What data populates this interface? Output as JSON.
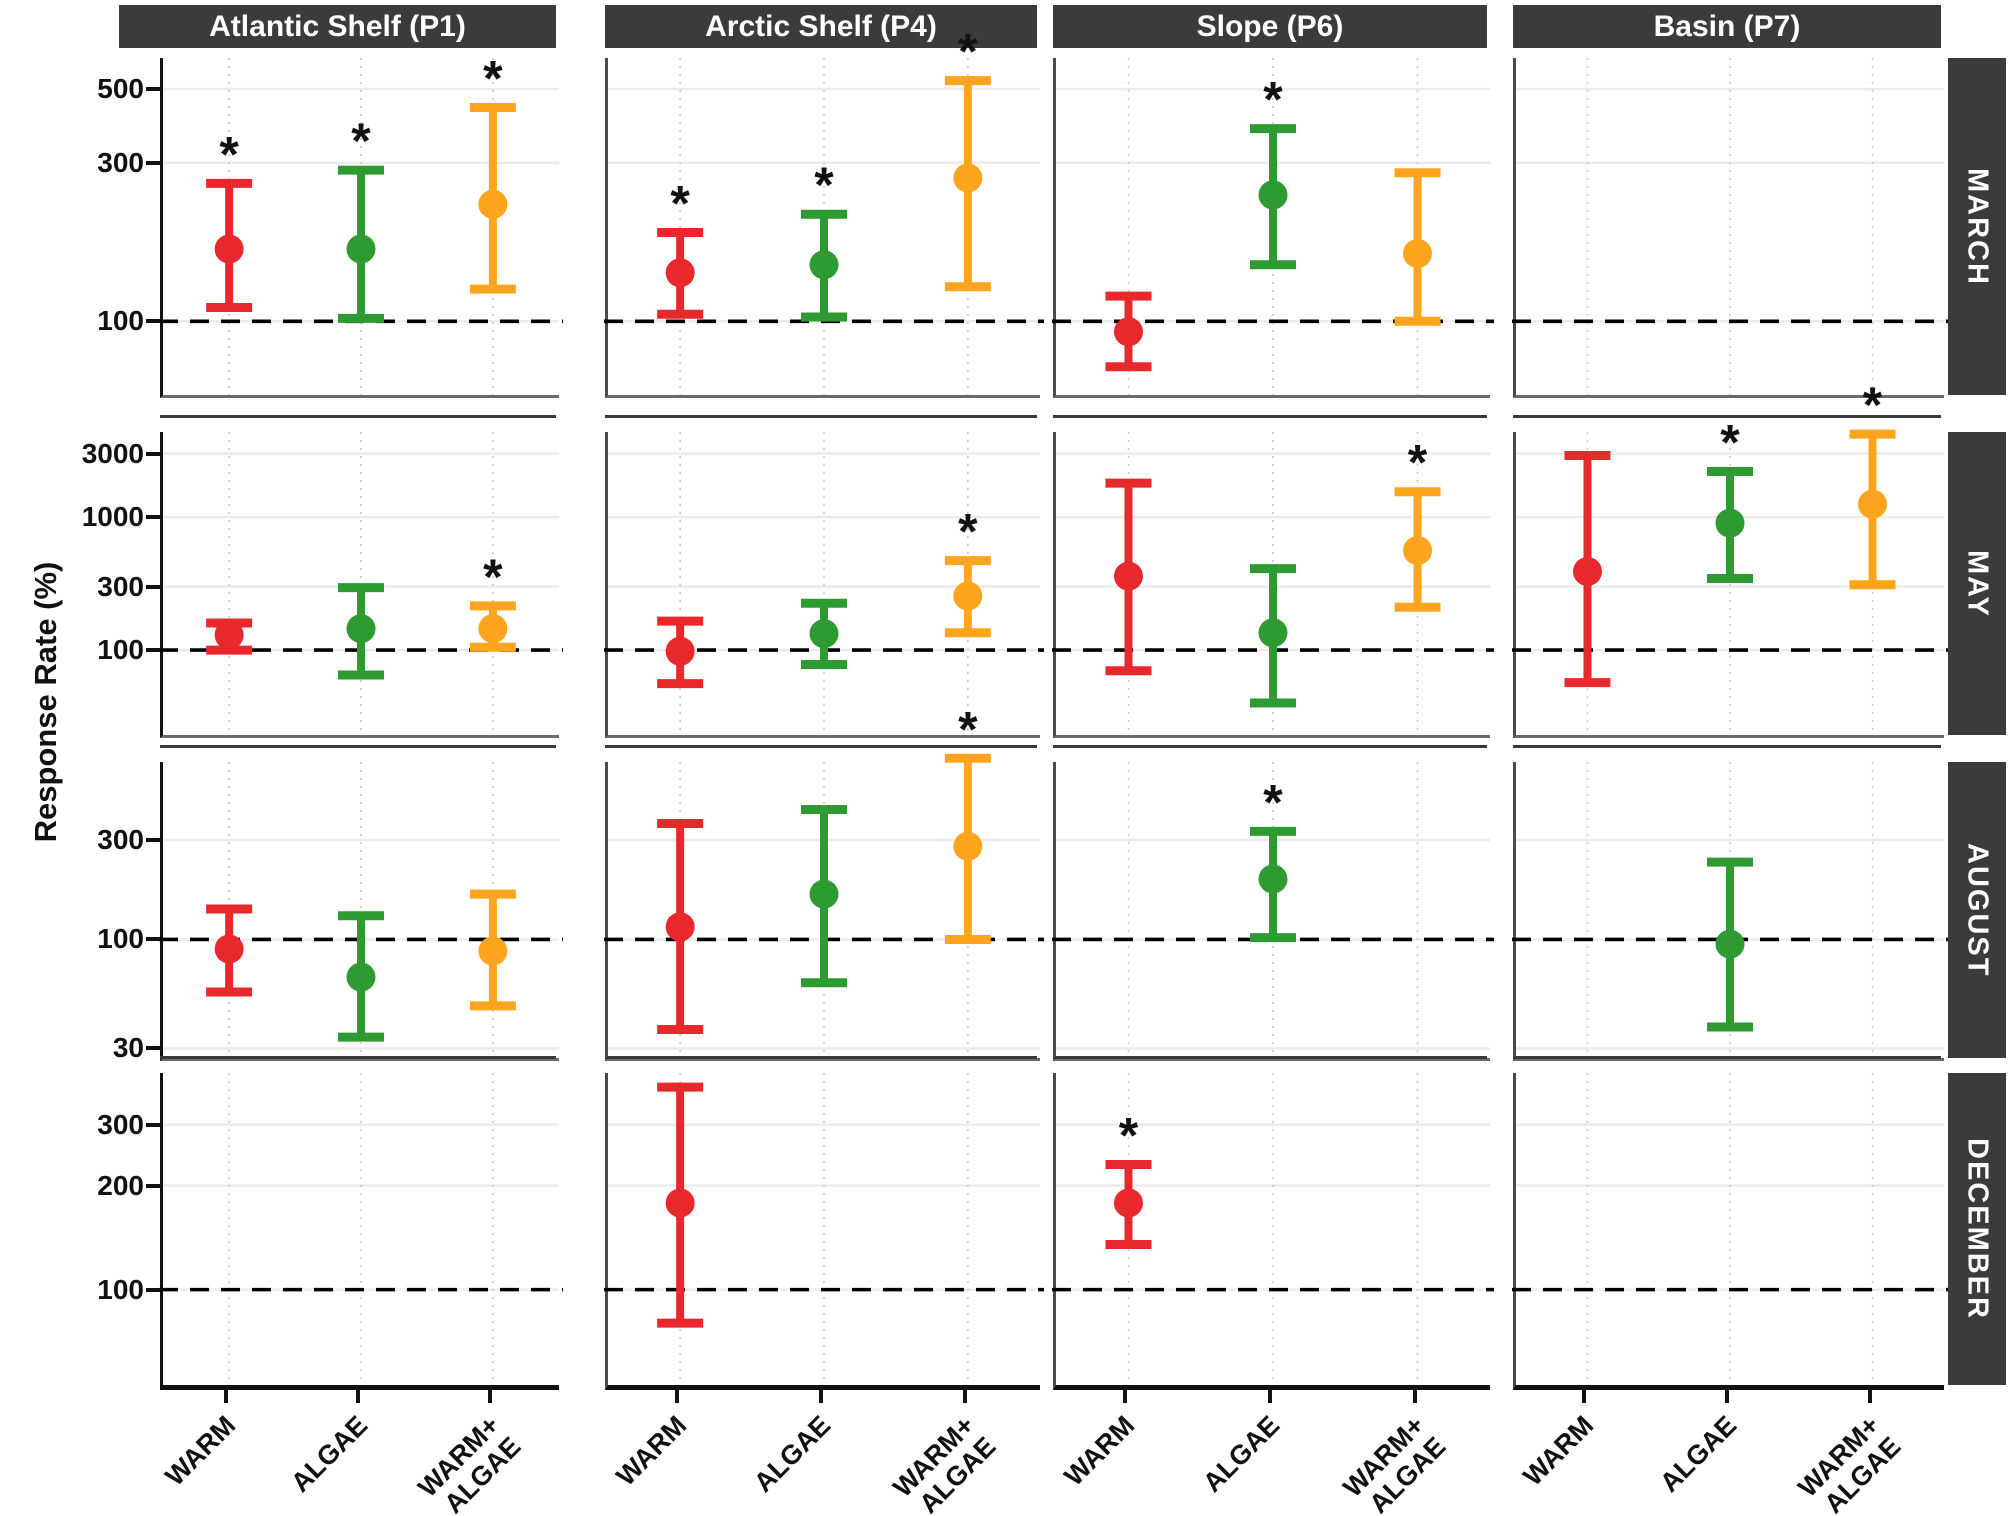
{
  "figure": {
    "y_axis_title": "Response Rate (%)",
    "significance_marker": "*"
  },
  "chart_data": {
    "type": "scatter",
    "subtype": "point-range with error bars, faceted grid, log10 y-scale",
    "title": "",
    "xlabel": "",
    "ylabel": "Response Rate (%)",
    "reference_line_y": 100,
    "grid": "major horizontal solid, vertical dotted at categories",
    "x_categories": [
      "WARM",
      "ALGAE",
      "WARM+ALGAE"
    ],
    "x_category_display": [
      [
        "WARM"
      ],
      [
        "ALGAE"
      ],
      [
        "WARM+",
        "ALGAE"
      ]
    ],
    "facet_columns": [
      {
        "id": "P1",
        "label": "Atlantic Shelf (P1)"
      },
      {
        "id": "P4",
        "label": "Arctic Shelf (P4)"
      },
      {
        "id": "P6",
        "label": "Slope (P6)"
      },
      {
        "id": "P7",
        "label": "Basin (P7)"
      }
    ],
    "facet_rows": [
      {
        "id": "MARCH",
        "label": "MARCH",
        "yticks": [
          500,
          300,
          100
        ],
        "ylim": [
          60,
          620
        ]
      },
      {
        "id": "MAY",
        "label": "MAY",
        "yticks": [
          3000,
          1000,
          300,
          100
        ],
        "ylim": [
          23,
          4360
        ]
      },
      {
        "id": "AUGUST",
        "label": "AUGUST",
        "yticks": [
          300,
          100,
          30
        ],
        "ylim": [
          27,
          710
        ]
      },
      {
        "id": "DECEMBER",
        "label": "DECEMBER",
        "yticks": [
          300,
          200,
          100
        ],
        "ylim": [
          53,
          423
        ]
      }
    ],
    "series": [
      {
        "name": "WARM",
        "color": "#E8282C"
      },
      {
        "name": "ALGAE",
        "color": "#2E9B32"
      },
      {
        "name": "WARM+ALGAE",
        "color": "#FFA41E"
      }
    ],
    "points": [
      {
        "row": "MARCH",
        "col": "P1",
        "treatment": "WARM",
        "value": 165,
        "lo": 110,
        "hi": 260,
        "significant": true
      },
      {
        "row": "MARCH",
        "col": "P1",
        "treatment": "ALGAE",
        "value": 165,
        "lo": 102,
        "hi": 285,
        "significant": true
      },
      {
        "row": "MARCH",
        "col": "P1",
        "treatment": "WARM+ALGAE",
        "value": 225,
        "lo": 125,
        "hi": 440,
        "significant": true
      },
      {
        "row": "MARCH",
        "col": "P4",
        "treatment": "WARM",
        "value": 140,
        "lo": 105,
        "hi": 185,
        "significant": true
      },
      {
        "row": "MARCH",
        "col": "P4",
        "treatment": "ALGAE",
        "value": 148,
        "lo": 103,
        "hi": 210,
        "significant": true
      },
      {
        "row": "MARCH",
        "col": "P4",
        "treatment": "WARM+ALGAE",
        "value": 270,
        "lo": 127,
        "hi": 530,
        "significant": true
      },
      {
        "row": "MARCH",
        "col": "P6",
        "treatment": "WARM",
        "value": 93,
        "lo": 73,
        "hi": 119,
        "significant": false
      },
      {
        "row": "MARCH",
        "col": "P6",
        "treatment": "ALGAE",
        "value": 240,
        "lo": 148,
        "hi": 380,
        "significant": true
      },
      {
        "row": "MARCH",
        "col": "P6",
        "treatment": "WARM+ALGAE",
        "value": 160,
        "lo": 100,
        "hi": 280,
        "significant": false
      },
      {
        "row": "MAY",
        "col": "P1",
        "treatment": "WARM",
        "value": 130,
        "lo": 100,
        "hi": 160,
        "significant": false
      },
      {
        "row": "MAY",
        "col": "P1",
        "treatment": "ALGAE",
        "value": 145,
        "lo": 65,
        "hi": 295,
        "significant": false
      },
      {
        "row": "MAY",
        "col": "P1",
        "treatment": "WARM+ALGAE",
        "value": 145,
        "lo": 105,
        "hi": 215,
        "significant": true
      },
      {
        "row": "MAY",
        "col": "P4",
        "treatment": "WARM",
        "value": 98,
        "lo": 56,
        "hi": 165,
        "significant": false
      },
      {
        "row": "MAY",
        "col": "P4",
        "treatment": "ALGAE",
        "value": 133,
        "lo": 78,
        "hi": 225,
        "significant": false
      },
      {
        "row": "MAY",
        "col": "P4",
        "treatment": "WARM+ALGAE",
        "value": 255,
        "lo": 135,
        "hi": 470,
        "significant": true
      },
      {
        "row": "MAY",
        "col": "P6",
        "treatment": "WARM",
        "value": 360,
        "lo": 70,
        "hi": 1800,
        "significant": false
      },
      {
        "row": "MAY",
        "col": "P6",
        "treatment": "ALGAE",
        "value": 135,
        "lo": 40,
        "hi": 410,
        "significant": false
      },
      {
        "row": "MAY",
        "col": "P6",
        "treatment": "WARM+ALGAE",
        "value": 560,
        "lo": 210,
        "hi": 1550,
        "significant": true
      },
      {
        "row": "MAY",
        "col": "P7",
        "treatment": "WARM",
        "value": 390,
        "lo": 57,
        "hi": 2900,
        "significant": false
      },
      {
        "row": "MAY",
        "col": "P7",
        "treatment": "ALGAE",
        "value": 900,
        "lo": 345,
        "hi": 2200,
        "significant": true
      },
      {
        "row": "MAY",
        "col": "P7",
        "treatment": "WARM+ALGAE",
        "value": 1250,
        "lo": 310,
        "hi": 4200,
        "significant": true
      },
      {
        "row": "AUGUST",
        "col": "P1",
        "treatment": "WARM",
        "value": 90,
        "lo": 56,
        "hi": 140,
        "significant": false
      },
      {
        "row": "AUGUST",
        "col": "P1",
        "treatment": "ALGAE",
        "value": 66,
        "lo": 34,
        "hi": 130,
        "significant": false
      },
      {
        "row": "AUGUST",
        "col": "P1",
        "treatment": "WARM+ALGAE",
        "value": 88,
        "lo": 48,
        "hi": 165,
        "significant": false
      },
      {
        "row": "AUGUST",
        "col": "P4",
        "treatment": "WARM",
        "value": 115,
        "lo": 37,
        "hi": 360,
        "significant": false
      },
      {
        "row": "AUGUST",
        "col": "P4",
        "treatment": "ALGAE",
        "value": 165,
        "lo": 62,
        "hi": 420,
        "significant": false
      },
      {
        "row": "AUGUST",
        "col": "P4",
        "treatment": "WARM+ALGAE",
        "value": 280,
        "lo": 100,
        "hi": 740,
        "significant": true
      },
      {
        "row": "AUGUST",
        "col": "P6",
        "treatment": "ALGAE",
        "value": 195,
        "lo": 102,
        "hi": 330,
        "significant": true
      },
      {
        "row": "AUGUST",
        "col": "P7",
        "treatment": "ALGAE",
        "value": 95,
        "lo": 38,
        "hi": 235,
        "significant": false
      },
      {
        "row": "DECEMBER",
        "col": "P4",
        "treatment": "WARM",
        "value": 178,
        "lo": 80,
        "hi": 385,
        "significant": false
      },
      {
        "row": "DECEMBER",
        "col": "P6",
        "treatment": "WARM",
        "value": 178,
        "lo": 135,
        "hi": 230,
        "significant": true
      }
    ],
    "colors": {
      "strip_bg": "#3B3B3B",
      "strip_text": "#FFFFFF",
      "grid": "#EBEBEB",
      "vgrid": "#C9C9C9",
      "ref_line": "#000000",
      "panel_bg": "#FFFFFF",
      "axis": "#111111"
    },
    "legend_position": "none"
  }
}
